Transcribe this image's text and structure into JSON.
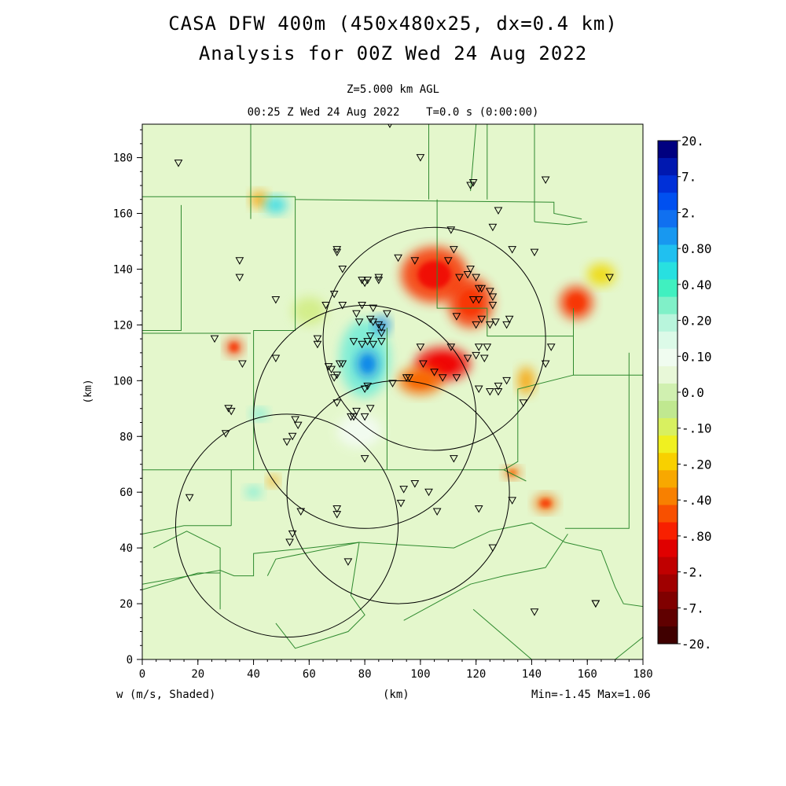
{
  "header": {
    "title_line1": "CASA DFW 400m (450x480x25, dx=0.4 km)",
    "title_line2": "Analysis for 00Z Wed 24 Aug 2022",
    "level": "Z=5.000 km AGL",
    "valid_time": "00:25 Z Wed 24 Aug 2022    T=0.0 s (0:00:00)"
  },
  "footer": {
    "variable": "w (m/s, Shaded)",
    "xlabel": "(km)",
    "minmax": "Min=-1.45 Max=1.06"
  },
  "chart_data": {
    "type": "heatmap",
    "variable": "w (m/s, Shaded)",
    "xlabel": "(km)",
    "ylabel": "(km)",
    "xlim": [
      0,
      180
    ],
    "ylim": [
      0,
      192
    ],
    "x_ticks": [
      0,
      20,
      40,
      60,
      80,
      100,
      120,
      140,
      160,
      180
    ],
    "y_ticks": [
      0,
      20,
      40,
      60,
      80,
      100,
      120,
      140,
      160,
      180
    ],
    "min": -1.45,
    "max": 1.06,
    "colorbar": {
      "labels": [
        "20.",
        "7.",
        "2.",
        "0.80",
        "0.40",
        "0.20",
        "0.10",
        "0.0",
        "-.10",
        "-.20",
        "-.40",
        "-.80",
        "-2.",
        "-7.",
        "-20."
      ],
      "colors": [
        "#000080",
        "#0018b0",
        "#0030d8",
        "#0050f0",
        "#1070f0",
        "#1898f0",
        "#20c0f0",
        "#28e0e0",
        "#40f0c0",
        "#80f0c8",
        "#b8f5dc",
        "#dcfae8",
        "#f0fcf0",
        "#e8f8d8",
        "#d0f0b0",
        "#c0e890",
        "#d8f060",
        "#f0f020",
        "#f8d000",
        "#f8a800",
        "#f88000",
        "#f85000",
        "#f82000",
        "#e00000",
        "#c00000",
        "#a00000",
        "#800000",
        "#600000",
        "#400000"
      ]
    },
    "radar_rings": [
      {
        "cx": 105,
        "cy": 115,
        "r": 40
      },
      {
        "cx": 80,
        "cy": 87,
        "r": 40
      },
      {
        "cx": 92,
        "cy": 60,
        "r": 40
      },
      {
        "cx": 52,
        "cy": 48,
        "r": 40
      }
    ],
    "cells": [
      {
        "x": 105,
        "y": 138,
        "rx": 12,
        "ry": 10,
        "value": -1.0
      },
      {
        "x": 118,
        "y": 128,
        "rx": 8,
        "ry": 9,
        "value": -0.8
      },
      {
        "x": 108,
        "y": 106,
        "rx": 10,
        "ry": 6,
        "value": -1.45
      },
      {
        "x": 100,
        "y": 100,
        "rx": 8,
        "ry": 5,
        "value": -0.6
      },
      {
        "x": 156,
        "y": 128,
        "rx": 6,
        "ry": 6,
        "value": -0.8
      },
      {
        "x": 138,
        "y": 100,
        "rx": 3,
        "ry": 5,
        "value": -0.4
      },
      {
        "x": 145,
        "y": 56,
        "rx": 4,
        "ry": 3,
        "value": -0.7
      },
      {
        "x": 133,
        "y": 67,
        "rx": 3,
        "ry": 2,
        "value": -0.6
      },
      {
        "x": 33,
        "y": 112,
        "rx": 3,
        "ry": 3,
        "value": -0.9
      },
      {
        "x": 42,
        "y": 165,
        "rx": 3,
        "ry": 3,
        "value": -0.5
      },
      {
        "x": 47,
        "y": 64,
        "rx": 2,
        "ry": 2,
        "value": -0.4
      },
      {
        "x": 80,
        "y": 108,
        "rx": 9,
        "ry": 14,
        "value": 0.25
      },
      {
        "x": 81,
        "y": 106,
        "rx": 4,
        "ry": 5,
        "value": 0.6
      },
      {
        "x": 86,
        "y": 120,
        "rx": 3,
        "ry": 3,
        "value": 0.5
      },
      {
        "x": 48,
        "y": 163,
        "rx": 4,
        "ry": 3,
        "value": 0.4
      },
      {
        "x": 40,
        "y": 60,
        "rx": 3,
        "ry": 2,
        "value": 0.3
      },
      {
        "x": 42,
        "y": 88,
        "rx": 3,
        "ry": 2,
        "value": 0.2
      },
      {
        "x": 78,
        "y": 82,
        "rx": 8,
        "ry": 6,
        "value": 0.05
      },
      {
        "x": 165,
        "y": 138,
        "rx": 5,
        "ry": 4,
        "value": -0.3
      },
      {
        "x": 60,
        "y": 125,
        "rx": 6,
        "ry": 5,
        "value": -0.15
      }
    ],
    "stations": [
      [
        13,
        178
      ],
      [
        89,
        192
      ],
      [
        100,
        180
      ],
      [
        118,
        170
      ],
      [
        119,
        171
      ],
      [
        145,
        172
      ],
      [
        126,
        155
      ],
      [
        128,
        161
      ],
      [
        111,
        154
      ],
      [
        35,
        143
      ],
      [
        35,
        137
      ],
      [
        48,
        129
      ],
      [
        70,
        147
      ],
      [
        70,
        146
      ],
      [
        72,
        140
      ],
      [
        69,
        131
      ],
      [
        66,
        127
      ],
      [
        72,
        127
      ],
      [
        79,
        136
      ],
      [
        80,
        135
      ],
      [
        81,
        136
      ],
      [
        85,
        136
      ],
      [
        85,
        137
      ],
      [
        83,
        126
      ],
      [
        79,
        127
      ],
      [
        78,
        121
      ],
      [
        77,
        124
      ],
      [
        82,
        122
      ],
      [
        83,
        121
      ],
      [
        85,
        120
      ],
      [
        86,
        119
      ],
      [
        88,
        124
      ],
      [
        86,
        117
      ],
      [
        82,
        116
      ],
      [
        76,
        114
      ],
      [
        79,
        113
      ],
      [
        81,
        114
      ],
      [
        83,
        113
      ],
      [
        86,
        114
      ],
      [
        63,
        113
      ],
      [
        67,
        105
      ],
      [
        68,
        104
      ],
      [
        71,
        106
      ],
      [
        72,
        106
      ],
      [
        70,
        102
      ],
      [
        69,
        101
      ],
      [
        63,
        115
      ],
      [
        92,
        144
      ],
      [
        98,
        143
      ],
      [
        110,
        143
      ],
      [
        114,
        137
      ],
      [
        112,
        147
      ],
      [
        118,
        140
      ],
      [
        117,
        138
      ],
      [
        120,
        137
      ],
      [
        121,
        133
      ],
      [
        122,
        133
      ],
      [
        119,
        129
      ],
      [
        121,
        129
      ],
      [
        125,
        132
      ],
      [
        126,
        130
      ],
      [
        126,
        127
      ],
      [
        122,
        122
      ],
      [
        127,
        121
      ],
      [
        125,
        120
      ],
      [
        113,
        123
      ],
      [
        120,
        120
      ],
      [
        124,
        112
      ],
      [
        121,
        112
      ],
      [
        111,
        112
      ],
      [
        117,
        108
      ],
      [
        120,
        109
      ],
      [
        123,
        108
      ],
      [
        100,
        112
      ],
      [
        101,
        106
      ],
      [
        105,
        103
      ],
      [
        108,
        101
      ],
      [
        113,
        101
      ],
      [
        121,
        97
      ],
      [
        125,
        96
      ],
      [
        128,
        96
      ],
      [
        128,
        98
      ],
      [
        131,
        100
      ],
      [
        137,
        92
      ],
      [
        145,
        106
      ],
      [
        147,
        112
      ],
      [
        168,
        137
      ],
      [
        131,
        120
      ],
      [
        132,
        122
      ],
      [
        133,
        147
      ],
      [
        141,
        146
      ],
      [
        26,
        115
      ],
      [
        36,
        106
      ],
      [
        48,
        108
      ],
      [
        31,
        90
      ],
      [
        32,
        89
      ],
      [
        52,
        78
      ],
      [
        54,
        80
      ],
      [
        55,
        86
      ],
      [
        56,
        84
      ],
      [
        30,
        81
      ],
      [
        70,
        92
      ],
      [
        75,
        87
      ],
      [
        76,
        87
      ],
      [
        77,
        89
      ],
      [
        80,
        87
      ],
      [
        82,
        90
      ],
      [
        80,
        97
      ],
      [
        81,
        98
      ],
      [
        90,
        99
      ],
      [
        95,
        101
      ],
      [
        96,
        101
      ],
      [
        80,
        72
      ],
      [
        94,
        61
      ],
      [
        93,
        56
      ],
      [
        98,
        63
      ],
      [
        103,
        60
      ],
      [
        106,
        53
      ],
      [
        112,
        72
      ],
      [
        121,
        54
      ],
      [
        133,
        57
      ],
      [
        126,
        40
      ],
      [
        17,
        58
      ],
      [
        57,
        53
      ],
      [
        70,
        54
      ],
      [
        70,
        52
      ],
      [
        54,
        45
      ],
      [
        53,
        42
      ],
      [
        74,
        35
      ],
      [
        141,
        17
      ],
      [
        163,
        20
      ],
      [
        163,
        20
      ]
    ],
    "boundaries": [
      [
        [
          0,
          166
        ],
        [
          55,
          166
        ],
        [
          55,
          165
        ],
        [
          148,
          164
        ],
        [
          148,
          160
        ],
        [
          158,
          158
        ]
      ],
      [
        [
          0,
          118
        ],
        [
          14,
          118
        ],
        [
          14,
          163
        ]
      ],
      [
        [
          39,
          192
        ],
        [
          39,
          158
        ]
      ],
      [
        [
          55,
          165
        ],
        [
          55,
          118
        ],
        [
          40,
          118
        ],
        [
          40,
          68
        ]
      ],
      [
        [
          0,
          117
        ],
        [
          39,
          117
        ]
      ],
      [
        [
          124,
          192
        ],
        [
          124,
          165
        ]
      ],
      [
        [
          103,
          192
        ],
        [
          103,
          165
        ]
      ],
      [
        [
          141,
          192
        ],
        [
          141,
          157
        ]
      ],
      [
        [
          141,
          157
        ],
        [
          153,
          156
        ],
        [
          160,
          157
        ]
      ],
      [
        [
          106,
          165
        ],
        [
          106,
          126
        ],
        [
          124,
          126
        ],
        [
          124,
          116
        ],
        [
          155,
          116
        ],
        [
          155,
          126
        ]
      ],
      [
        [
          155,
          116
        ],
        [
          155,
          102
        ],
        [
          180,
          102
        ]
      ],
      [
        [
          155,
          102
        ],
        [
          135,
          97
        ],
        [
          135,
          71
        ],
        [
          130,
          68
        ]
      ],
      [
        [
          0,
          68
        ],
        [
          130,
          68
        ],
        [
          138,
          64
        ]
      ],
      [
        [
          88,
          119
        ],
        [
          88,
          68
        ]
      ],
      [
        [
          0,
          27
        ],
        [
          28,
          32
        ],
        [
          33,
          30
        ],
        [
          40,
          30
        ],
        [
          40,
          38
        ],
        [
          60,
          40
        ],
        [
          78,
          42
        ]
      ],
      [
        [
          0,
          45
        ],
        [
          15,
          48
        ],
        [
          32,
          48
        ]
      ],
      [
        [
          32,
          68
        ],
        [
          32,
          48
        ]
      ],
      [
        [
          0,
          25
        ],
        [
          20,
          31
        ],
        [
          28,
          31
        ],
        [
          28,
          18
        ]
      ],
      [
        [
          28,
          31
        ],
        [
          28,
          40
        ],
        [
          16,
          46
        ],
        [
          4,
          40
        ]
      ],
      [
        [
          45,
          30
        ],
        [
          48,
          36
        ],
        [
          78,
          42
        ],
        [
          75,
          23
        ],
        [
          80,
          16
        ],
        [
          74,
          10
        ],
        [
          55,
          4
        ],
        [
          48,
          13
        ]
      ],
      [
        [
          78,
          42
        ],
        [
          112,
          40
        ],
        [
          125,
          46
        ],
        [
          140,
          49
        ],
        [
          152,
          42
        ],
        [
          165,
          39
        ],
        [
          170,
          26
        ],
        [
          173,
          20
        ],
        [
          180,
          19
        ]
      ],
      [
        [
          94,
          14
        ],
        [
          118,
          27
        ],
        [
          130,
          30
        ],
        [
          145,
          33
        ],
        [
          153,
          45
        ]
      ],
      [
        [
          152,
          47
        ],
        [
          175,
          47
        ],
        [
          175,
          110
        ]
      ],
      [
        [
          119,
          18
        ],
        [
          140,
          0
        ]
      ],
      [
        [
          170,
          0
        ],
        [
          180,
          8
        ]
      ],
      [
        [
          118,
          168
        ],
        [
          120,
          192
        ]
      ]
    ]
  }
}
